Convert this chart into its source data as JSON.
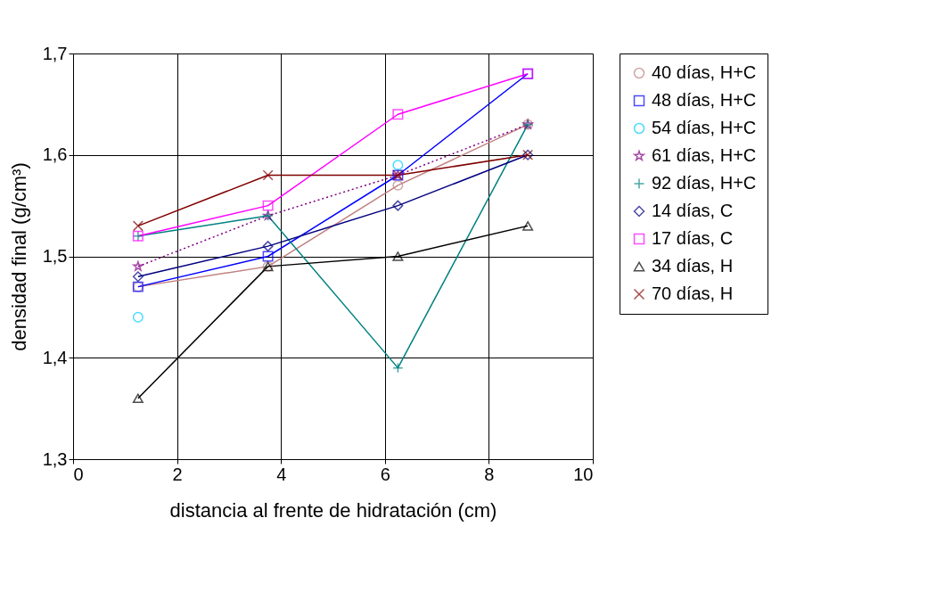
{
  "chart_data": {
    "type": "line",
    "xlabel": "distancia al frente de hidratación (cm)",
    "ylabel": "densidad final (g/cm³)",
    "x": [
      1.25,
      3.75,
      6.25,
      8.75
    ],
    "xlim": [
      0,
      10
    ],
    "xticks": [
      0,
      2,
      4,
      6,
      8,
      10
    ],
    "ylim": [
      1.3,
      1.7
    ],
    "yticks": [
      {
        "value": 1.3,
        "label": "1,3"
      },
      {
        "value": 1.4,
        "label": "1,4"
      },
      {
        "value": 1.5,
        "label": "1,5"
      },
      {
        "value": 1.6,
        "label": "1,6"
      },
      {
        "value": 1.7,
        "label": "1,7"
      }
    ],
    "grid": true,
    "legend": "right",
    "series": [
      {
        "name": "40 días, H+C",
        "color": "#c08080",
        "marker": "circle",
        "line_style": "solid",
        "values": [
          1.47,
          1.49,
          1.57,
          1.63
        ]
      },
      {
        "name": "48 días, H+C",
        "color": "#0000ff",
        "marker": "square",
        "line_style": "solid",
        "values": [
          1.47,
          1.5,
          1.58,
          1.68
        ]
      },
      {
        "name": "54 días, H+C",
        "type": "scatter",
        "color": "#00ccff",
        "marker": "circle",
        "values": [
          1.44,
          null,
          1.59,
          null
        ]
      },
      {
        "name": "61 días, H+C",
        "color": "#800080",
        "marker": "star",
        "line_style": "dotted",
        "values": [
          1.49,
          1.54,
          1.58,
          1.63
        ]
      },
      {
        "name": "92 días, H+C",
        "color": "#008080",
        "marker": "cross",
        "line_style": "solid",
        "values": [
          1.52,
          1.54,
          1.39,
          1.63
        ]
      },
      {
        "name": "14 días, C",
        "color": "#000080",
        "marker": "diamond",
        "line_style": "solid",
        "values": [
          1.48,
          1.51,
          1.55,
          1.6
        ]
      },
      {
        "name": "17 días, C",
        "color": "#ff00ff",
        "marker": "square",
        "line_style": "solid",
        "values": [
          1.52,
          1.55,
          1.64,
          1.68
        ]
      },
      {
        "name": "34 días, H",
        "color": "#000000",
        "marker": "triangle",
        "line_style": "solid",
        "values": [
          1.36,
          1.49,
          1.5,
          1.53
        ]
      },
      {
        "name": "70 días, H",
        "color": "#800000",
        "marker": "x",
        "line_style": "solid",
        "values": [
          1.53,
          1.58,
          1.58,
          1.6
        ]
      }
    ]
  }
}
